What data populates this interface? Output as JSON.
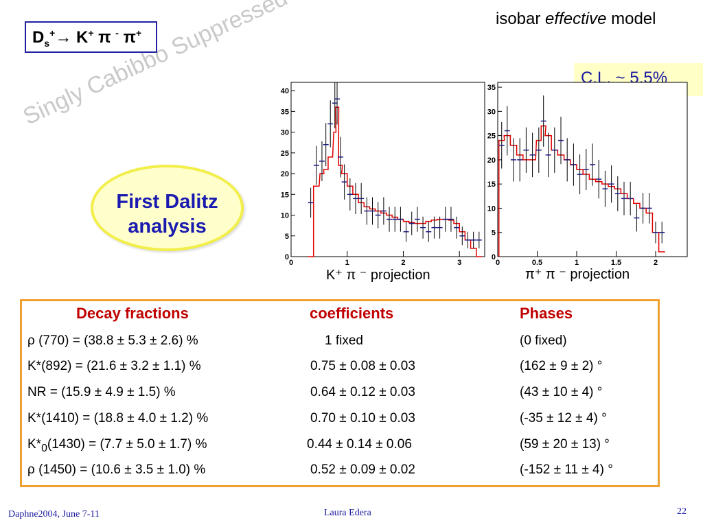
{
  "header": {
    "title_prefix": "isobar ",
    "title_italic": "effective",
    "title_suffix": " model"
  },
  "decay": {
    "d": "D",
    "d_sub": "s",
    "d_sup": "+",
    "arrow": "→",
    "k": " K",
    "k_sup": "+",
    "pi1": " π ",
    "pi1_sup": "-",
    "pi2": " π",
    "pi2_sup": "+"
  },
  "watermark": "Singly Cabibbo Suppressed Decay",
  "confidence": "C.L.  ~ 5.5%",
  "callout": {
    "line1": "First Dalitz",
    "line2": "analysis"
  },
  "chart_data": [
    {
      "type": "line",
      "xlabel": "K⁺ π ⁻ projection",
      "xlim": [
        0,
        3.45
      ],
      "ylim": [
        0,
        42
      ],
      "xticks": [
        "0",
        "1",
        "2",
        "3"
      ],
      "yticks": [
        "0",
        "5",
        "10",
        "15",
        "20",
        "25",
        "30",
        "35",
        "40"
      ],
      "x": [
        0.35,
        0.45,
        0.55,
        0.62,
        0.7,
        0.78,
        0.82,
        0.88,
        0.95,
        1.05,
        1.15,
        1.25,
        1.35,
        1.45,
        1.55,
        1.65,
        1.75,
        1.85,
        1.95,
        2.05,
        2.15,
        2.25,
        2.35,
        2.45,
        2.55,
        2.65,
        2.75,
        2.85,
        2.95,
        3.05,
        3.15,
        3.25,
        3.35
      ],
      "series": [
        {
          "values": [
            0,
            17,
            20,
            21,
            24,
            30,
            36,
            22,
            20,
            17,
            15,
            13,
            12,
            11.5,
            11,
            10.5,
            10,
            9.5,
            9,
            8.5,
            8.2,
            8,
            8,
            8.5,
            8.8,
            9,
            9,
            8.8,
            8,
            6,
            4,
            2,
            0
          ]
        },
        {
          "values": [
            13,
            22,
            23,
            27,
            32,
            37,
            38,
            24,
            18,
            15,
            14,
            14,
            11,
            11,
            10,
            11,
            9,
            9,
            9,
            6,
            8,
            9,
            7,
            6,
            7,
            7,
            9,
            9,
            7,
            5,
            4,
            4,
            4
          ]
        }
      ]
    },
    {
      "type": "line",
      "xlabel": "π⁺ π ⁻  projection",
      "xlim": [
        0,
        2.4
      ],
      "ylim": [
        0,
        36
      ],
      "xticks": [
        "0",
        "0.5",
        "1",
        "1.5",
        "2"
      ],
      "yticks": [
        "0",
        "5",
        "10",
        "15",
        "20",
        "25",
        "30",
        "35"
      ],
      "x": [
        0.05,
        0.12,
        0.2,
        0.28,
        0.36,
        0.44,
        0.52,
        0.58,
        0.64,
        0.72,
        0.8,
        0.88,
        0.96,
        1.04,
        1.12,
        1.2,
        1.28,
        1.36,
        1.44,
        1.52,
        1.6,
        1.68,
        1.76,
        1.84,
        1.92,
        2.0,
        2.08
      ],
      "series": [
        {
          "values": [
            24,
            25,
            23,
            21,
            20,
            20,
            24,
            27,
            25,
            22,
            21,
            20,
            19,
            18,
            17,
            16,
            15.5,
            15,
            14.5,
            14,
            13,
            12,
            11,
            10,
            9,
            5,
            1
          ]
        },
        {
          "values": [
            23,
            26,
            20,
            20,
            22,
            21,
            22,
            28,
            21,
            22,
            24,
            20,
            19,
            17,
            18,
            19,
            16,
            14,
            15,
            13,
            12,
            12,
            8,
            10,
            10,
            5,
            5
          ]
        }
      ]
    }
  ],
  "table": {
    "headers": [
      "Decay fractions",
      "coefficients",
      "Phases"
    ],
    "rows": [
      [
        "ρ (770)     = (38.8 ± 5.3 ±  2.6) %",
        "1 fixed",
        "(0 fixed)"
      ],
      [
        "K*(892)   = (21.6  ± 3.2 ± 1.1) %",
        "0.75 ± 0.08 ± 0.03",
        "(162 ± 9 ± 2) °"
      ],
      [
        "NR          =  (15.9 ± 4.9 ± 1.5) %",
        "0.64 ± 0.12 ± 0.03",
        "(43 ± 10 ± 4) °"
      ],
      [
        "K*(1410) = (18.8 ± 4.0 ± 1.2) %",
        "0.70 ± 0.10 ± 0.03",
        "(-35 ± 12 ± 4) °"
      ],
      [
        "(1430) = (7.7 ± 5.0 ± 1.7) %",
        "0.44 ± 0.14 ± 0.06",
        "(59 ± 20 ± 13) °"
      ],
      [
        "ρ (1450) =  (10.6 ± 3.5 ± 1.0) %",
        "0.52 ± 0.09 ± 0.02",
        "(-152 ± 11 ± 4) °"
      ]
    ],
    "k0_prefix": "K*",
    "k0_sub": "0"
  },
  "footer": {
    "left": "Daphne2004, June 7-11",
    "center": "Laura Edera",
    "page": "22"
  },
  "colors": {
    "fit_line": "#e00000",
    "data_points": "#1a1a80",
    "header_red": "#c00000",
    "footer_blue": "#1a1aa0",
    "table_border": "#f0a030"
  }
}
